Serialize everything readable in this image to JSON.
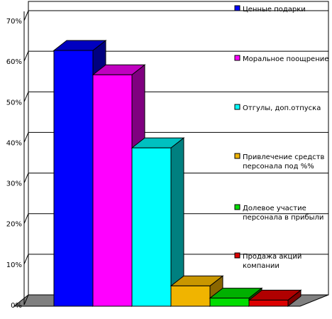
{
  "chart_data": {
    "type": "bar",
    "style": "3d",
    "categories": [
      "Ценные подарки",
      "Моральное поощрение",
      "Отгулы, доп.отпуска",
      "Привлечение средств персонала под %%",
      "Долевое участие персонала в прибыли",
      "Продажа акций компании"
    ],
    "values": [
      63,
      57,
      39,
      5,
      2,
      1.5
    ],
    "ylim": [
      0,
      70
    ],
    "yticks": [
      "0%",
      "10%",
      "20%",
      "30%",
      "40%",
      "50%",
      "60%",
      "70%"
    ],
    "grid": true,
    "legend_position": "right",
    "legend": [
      {
        "lines": [
          "Ценные подарки"
        ],
        "color": "#0000ff"
      },
      {
        "lines": [
          "Моральное поощрение"
        ],
        "color": "#ff00ff"
      },
      {
        "lines": [
          "Отгулы, доп.отпуска"
        ],
        "color": "#00ffff"
      },
      {
        "lines": [
          "Привлечение средств",
          "персонала под %%"
        ],
        "color": "#f0b400"
      },
      {
        "lines": [
          "Долевое участие",
          "персонала в прибыли"
        ],
        "color": "#00dd00"
      },
      {
        "lines": [
          "Продажа акций",
          "компании"
        ],
        "color": "#dd0000"
      }
    ],
    "colors": [
      "#0000ff",
      "#ff00ff",
      "#00ffff",
      "#f0b400",
      "#00dd00",
      "#dd0000"
    ],
    "side_colors": [
      "#000080",
      "#800080",
      "#008080",
      "#8a6600",
      "#007000",
      "#800000"
    ],
    "top_colors": [
      "#0000c0",
      "#c000c0",
      "#00c0c0",
      "#c89600",
      "#00b000",
      "#b00000"
    ],
    "floor_color": "#808080",
    "wall_color": "#ffffff"
  }
}
